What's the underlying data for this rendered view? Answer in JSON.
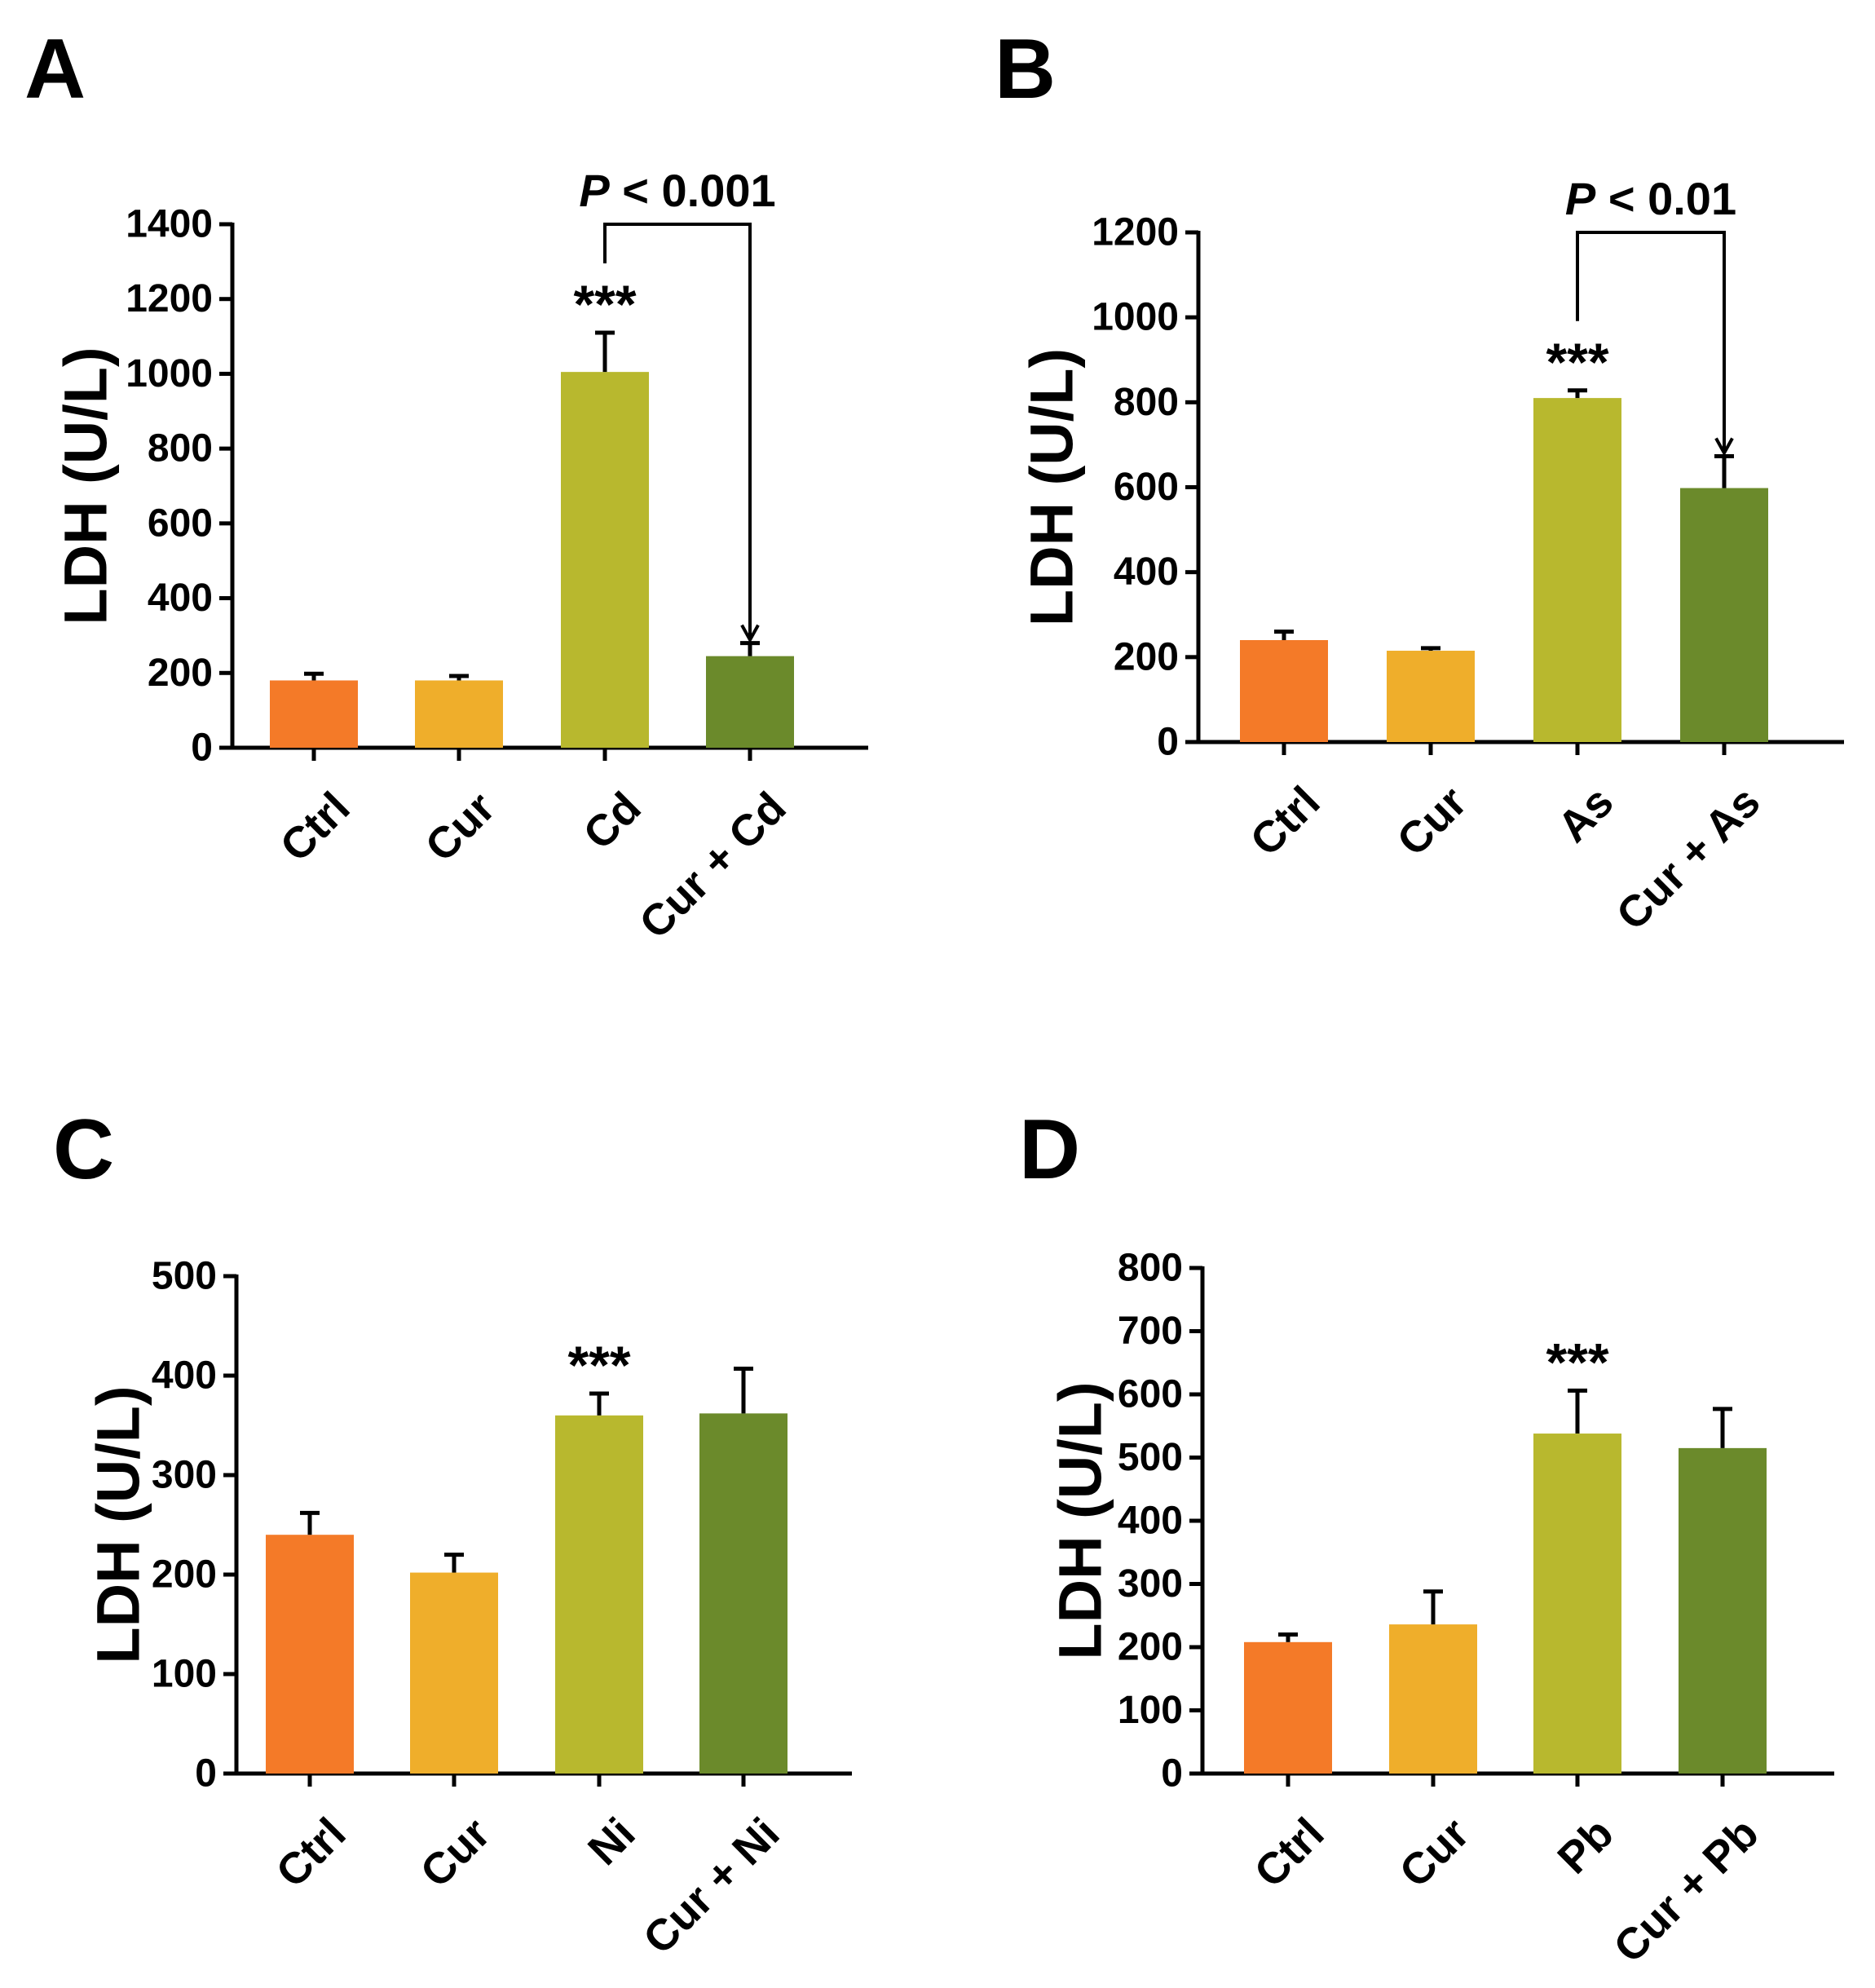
{
  "colors": {
    "ctrl": "#f47a28",
    "cur": "#efae2b",
    "metal": "#b8b82e",
    "combo": "#6b8a2b"
  },
  "chart_data": [
    {
      "type": "bar",
      "panel": "A",
      "ylabel": "LDH (U/L)",
      "ylim": [
        0,
        1400
      ],
      "yticks": [
        0,
        200,
        400,
        600,
        800,
        1000,
        1200,
        1400
      ],
      "categories": [
        "Ctrl",
        "Cur",
        "Cd",
        "Cur + Cd"
      ],
      "values": [
        180,
        180,
        1005,
        245
      ],
      "errors": [
        18,
        12,
        105,
        35
      ],
      "significance": {
        "bar_index": 2,
        "label": "***"
      },
      "comparison": {
        "from": 2,
        "to": 3,
        "p_letter": "P",
        "p_rest": "< 0.001"
      }
    },
    {
      "type": "bar",
      "panel": "B",
      "ylabel": "LDH (U/L)",
      "ylim": [
        0,
        1200
      ],
      "yticks": [
        0,
        200,
        400,
        600,
        800,
        1000,
        1200
      ],
      "categories": [
        "Ctrl",
        "Cur",
        "As",
        "Cur + As"
      ],
      "values": [
        240,
        215,
        810,
        598
      ],
      "errors": [
        20,
        6,
        18,
        75
      ],
      "significance": {
        "bar_index": 2,
        "label": "***"
      },
      "comparison": {
        "from": 2,
        "to": 3,
        "p_letter": "P",
        "p_rest": "< 0.01"
      }
    },
    {
      "type": "bar",
      "panel": "C",
      "ylabel": "LDH (U/L)",
      "ylim": [
        0,
        500
      ],
      "yticks": [
        0,
        100,
        200,
        300,
        400,
        500
      ],
      "categories": [
        "Ctrl",
        "Cur",
        "Ni",
        "Cur + Ni"
      ],
      "values": [
        240,
        202,
        360,
        362
      ],
      "errors": [
        22,
        18,
        22,
        45
      ],
      "significance": {
        "bar_index": 2,
        "label": "***"
      }
    },
    {
      "type": "bar",
      "panel": "D",
      "ylabel": "LDH (U/L)",
      "ylim": [
        0,
        800
      ],
      "yticks": [
        0,
        100,
        200,
        300,
        400,
        500,
        600,
        700,
        800
      ],
      "categories": [
        "Ctrl",
        "Cur",
        "Pb",
        "Cur + Pb"
      ],
      "values": [
        208,
        236,
        538,
        515
      ],
      "errors": [
        12,
        52,
        68,
        62
      ],
      "significance": {
        "bar_index": 2,
        "label": "***"
      }
    }
  ]
}
